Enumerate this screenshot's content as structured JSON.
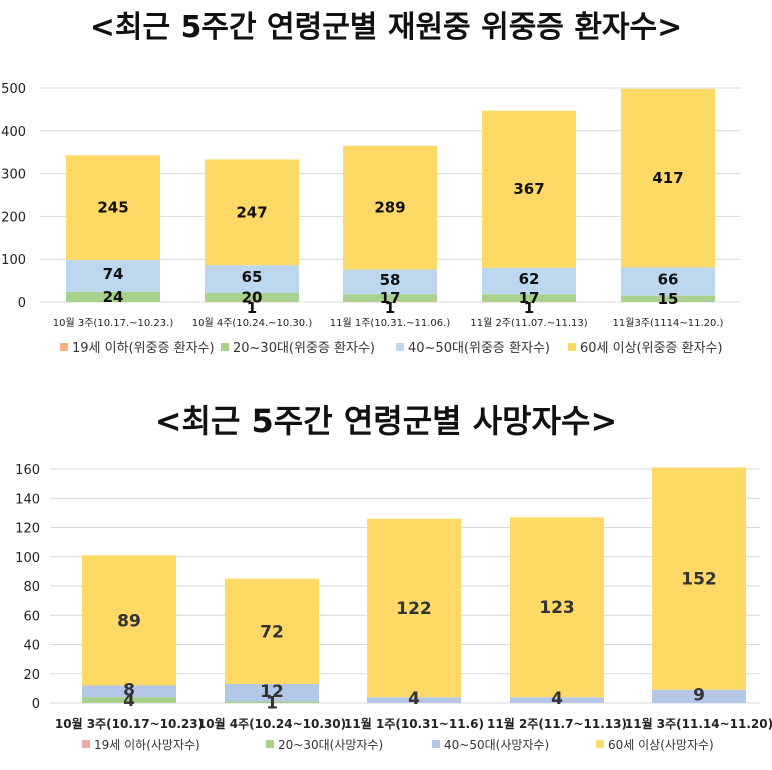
{
  "title1": "<최근 5주간 연령군별 재원중 위중증 환자수>",
  "title2": "<최근 5주간 연령군별 사망자수>",
  "colors": {
    "s19": "#f4b183",
    "s20": "#a9d18e",
    "s40": "#bdd7ee",
    "s60": "#ffd966",
    "s19b": "#f4a9a9",
    "s20b": "#a9d18e",
    "s40b": "#b4c7e7",
    "s60b": "#ffd966"
  },
  "chart_data": [
    {
      "type": "bar",
      "stacked": true,
      "categories": [
        "10월 3주(10.17.~10.23.)",
        "10월 4주(10.24.~10.30.)",
        "11월 1주(10.31.~11.06.)",
        "11월 2주(11.07.~11.13)",
        "11월3주(1114~11.20.)"
      ],
      "series": [
        {
          "name": "19세 이하(위중증 환자수)",
          "values": [
            0,
            1,
            1,
            1,
            0
          ],
          "labels": [
            "",
            "1",
            "1",
            "1",
            ""
          ]
        },
        {
          "name": "20~30대(위중증 환자수)",
          "values": [
            24,
            20,
            17,
            17,
            15
          ],
          "labels": [
            "24",
            "20",
            "17",
            "17",
            "15"
          ]
        },
        {
          "name": "40~50대(위중증 환자수)",
          "values": [
            74,
            65,
            58,
            62,
            66
          ],
          "labels": [
            "74",
            "65",
            "58",
            "62",
            "66"
          ]
        },
        {
          "name": "60세 이상(위중증 환자수)",
          "values": [
            245,
            247,
            289,
            367,
            417
          ],
          "labels": [
            "245",
            "247",
            "289",
            "367",
            "417"
          ]
        }
      ],
      "yticks": [
        0,
        100,
        200,
        300,
        400,
        500
      ],
      "ylim": [
        0,
        500
      ],
      "grid": true,
      "legend": "bottom"
    },
    {
      "type": "bar",
      "stacked": true,
      "categories": [
        "10월 3주(10.17~10.23)",
        "10월 4주(10.24~10.30)",
        "11월 1주(10.31~11.6)",
        "11월 2주(11.7~11.13)",
        "11월 3주(11.14~11.20)"
      ],
      "series": [
        {
          "name": "19세 이하(사망자수)",
          "values": [
            0,
            0,
            0,
            0,
            0
          ],
          "labels": [
            "",
            "",
            "",
            "",
            ""
          ]
        },
        {
          "name": "20~30대(사망자수)",
          "values": [
            4,
            1,
            0,
            0,
            0
          ],
          "labels": [
            "4",
            "1",
            "",
            "",
            ""
          ]
        },
        {
          "name": "40~50대(사망자수)",
          "values": [
            8,
            12,
            4,
            4,
            9
          ],
          "labels": [
            "8",
            "12",
            "4",
            "4",
            "9"
          ]
        },
        {
          "name": "60세 이상(사망자수)",
          "values": [
            89,
            72,
            122,
            123,
            152
          ],
          "labels": [
            "89",
            "72",
            "122",
            "123",
            "152"
          ]
        }
      ],
      "yticks": [
        0,
        20,
        40,
        60,
        80,
        100,
        120,
        140,
        160
      ],
      "ylim": [
        0,
        160
      ],
      "grid": true,
      "legend": "bottom"
    }
  ]
}
